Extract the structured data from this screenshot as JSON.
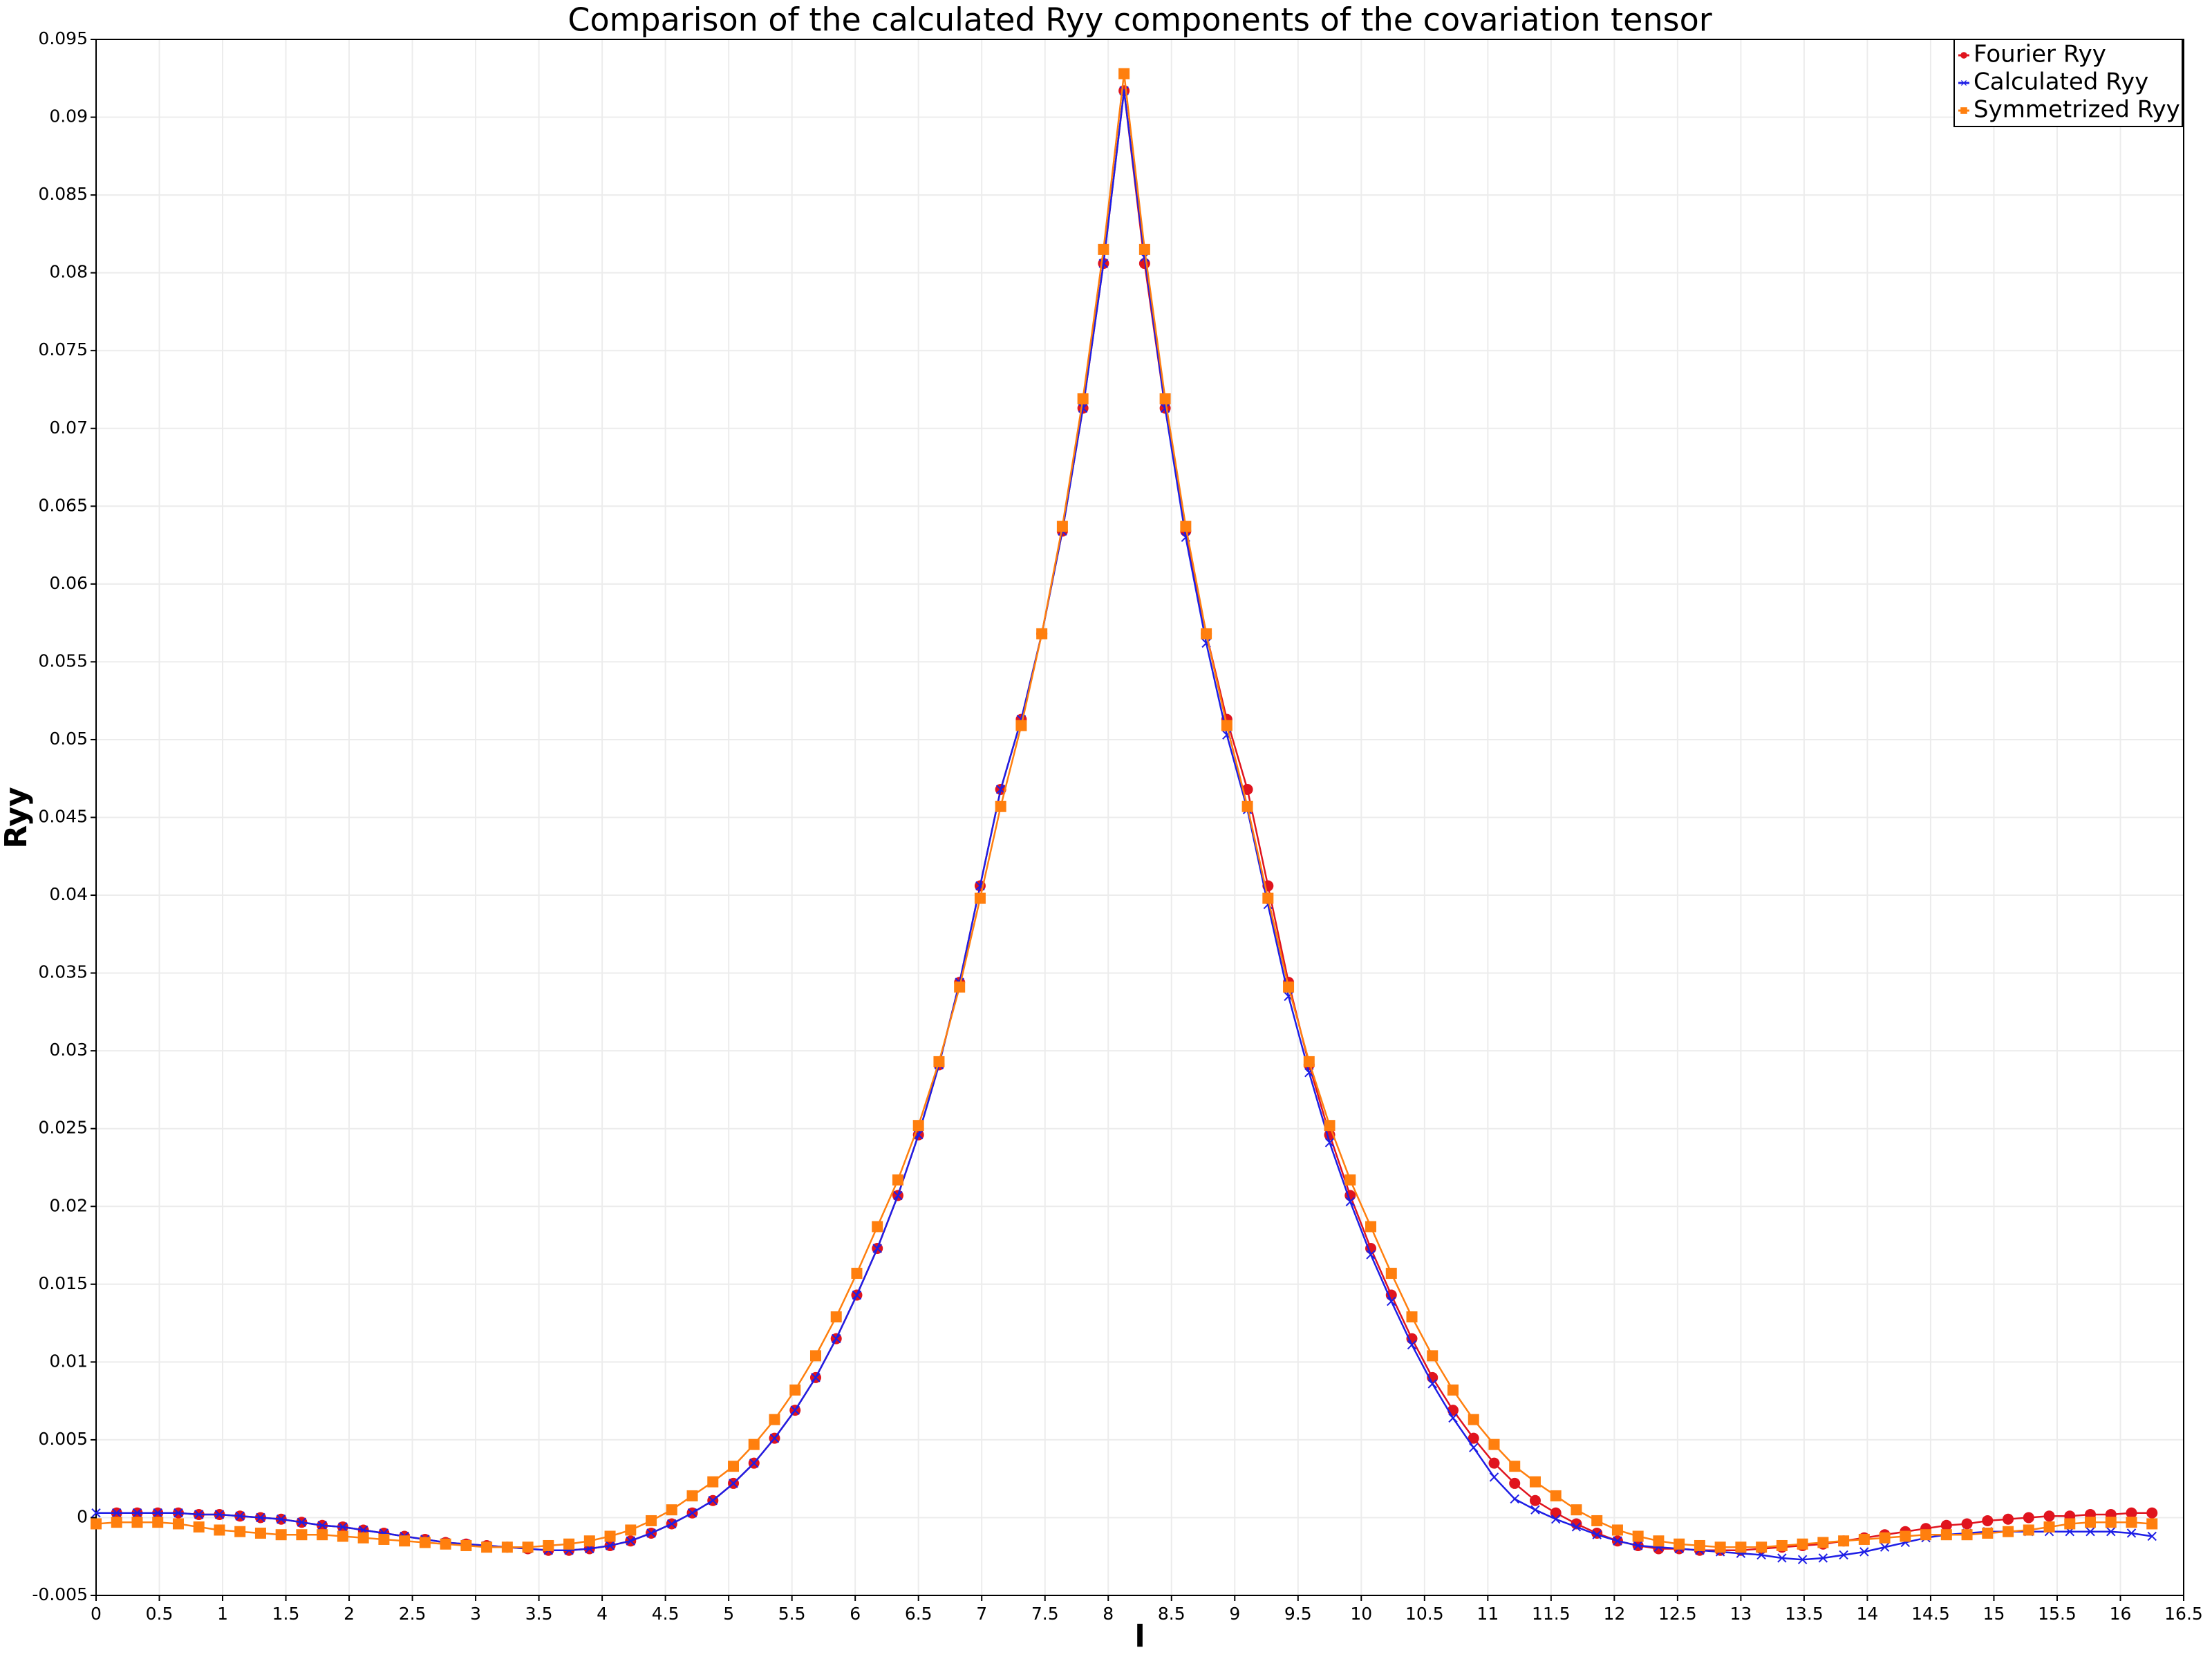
{
  "chart_data": {
    "type": "line",
    "title": "Comparison of the calculated Ryy components of the covariation tensor",
    "x_label": "l",
    "y_label": "Ryy",
    "xlim": [
      0,
      16.5
    ],
    "ylim": [
      -0.005,
      0.095
    ],
    "xticks": [
      0,
      0.5,
      1,
      1.5,
      2,
      2.5,
      3,
      3.5,
      4,
      4.5,
      5,
      5.5,
      6,
      6.5,
      7,
      7.5,
      8,
      8.5,
      9,
      9.5,
      10,
      10.5,
      11,
      11.5,
      12,
      12.5,
      13,
      13.5,
      14,
      14.5,
      15,
      15.5,
      16,
      16.5
    ],
    "yticks": [
      -0.005,
      0,
      0.005,
      0.01,
      0.015,
      0.02,
      0.025,
      0.03,
      0.035,
      0.04,
      0.045,
      0.05,
      0.055,
      0.06,
      0.065,
      0.07,
      0.075,
      0.08,
      0.085,
      0.09,
      0.095
    ],
    "grid": true,
    "legend": "upper right",
    "x": [
      0,
      0.1625,
      0.325,
      0.4875,
      0.65,
      0.8125,
      0.975,
      1.1375,
      1.3,
      1.4625,
      1.625,
      1.7875,
      1.95,
      2.1125,
      2.275,
      2.4375,
      2.6,
      2.7625,
      2.925,
      3.0875,
      3.25,
      3.4125,
      3.575,
      3.7375,
      3.9,
      4.0625,
      4.225,
      4.3875,
      4.55,
      4.7125,
      4.875,
      5.0375,
      5.2,
      5.3625,
      5.525,
      5.6875,
      5.85,
      6.0125,
      6.175,
      6.3375,
      6.5,
      6.6625,
      6.825,
      6.9875,
      7.15,
      7.3125,
      7.475,
      7.6375,
      7.8,
      7.9625,
      8.125,
      8.2875,
      8.45,
      8.6125,
      8.775,
      8.9375,
      9.1,
      9.2625,
      9.425,
      9.5875,
      9.75,
      9.9125,
      10.075,
      10.2375,
      10.4,
      10.5625,
      10.725,
      10.8875,
      11.05,
      11.2125,
      11.375,
      11.5375,
      11.7,
      11.8625,
      12.025,
      12.1875,
      12.35,
      12.5125,
      12.675,
      12.8375,
      13,
      13.1625,
      13.325,
      13.4875,
      13.65,
      13.8125,
      13.975,
      14.1375,
      14.3,
      14.4625,
      14.625,
      14.7875,
      14.95,
      15.1125,
      15.275,
      15.4375,
      15.6,
      15.7625,
      15.925,
      16.0875,
      16.25
    ],
    "series": [
      {
        "name": "Fourier Ryy",
        "color": "#e0141e",
        "marker": "circle",
        "values": [
          null,
          0.0003,
          0.0003,
          0.0003,
          0.0003,
          0.0002,
          0.0002,
          0.0001,
          0.0,
          -0.0001,
          -0.0003,
          -0.0005,
          -0.0006,
          -0.0008,
          -0.001,
          -0.0012,
          -0.0014,
          -0.0016,
          -0.0017,
          -0.0018,
          -0.0019,
          -0.002,
          -0.0021,
          -0.0021,
          -0.002,
          -0.0018,
          -0.0015,
          -0.001,
          -0.0004,
          0.0003,
          0.0011,
          0.0022,
          0.0035,
          0.0051,
          0.0069,
          0.009,
          0.0115,
          0.0143,
          0.0173,
          0.0207,
          0.0246,
          0.0291,
          0.0344,
          0.0406,
          0.0468,
          0.0513,
          0.0568,
          0.0634,
          0.0713,
          0.0806,
          0.0917,
          0.0806,
          0.0713,
          0.0634,
          0.0568,
          0.0513,
          0.0468,
          0.0406,
          0.0344,
          0.0291,
          0.0246,
          0.0207,
          0.0173,
          0.0143,
          0.0115,
          0.009,
          0.0069,
          0.0051,
          0.0035,
          0.0022,
          0.0011,
          0.0003,
          -0.0004,
          -0.001,
          -0.0015,
          -0.0018,
          -0.002,
          -0.002,
          -0.0021,
          -0.0021,
          -0.0021,
          -0.002,
          -0.0019,
          -0.0018,
          -0.0017,
          -0.0015,
          -0.0013,
          -0.0011,
          -0.0009,
          -0.0007,
          -0.0005,
          -0.0004,
          -0.0002,
          -0.0001,
          0.0,
          0.0001,
          0.0001,
          0.0002,
          0.0002,
          0.0003,
          0.0003
        ]
      },
      {
        "name": "Calculated Ryy",
        "color": "#1e1ee6",
        "marker": "x",
        "values": [
          0.0003,
          0.0003,
          0.0003,
          0.0003,
          0.0003,
          0.0002,
          0.0002,
          0.0001,
          0.0,
          -0.0001,
          -0.0003,
          -0.0005,
          -0.0006,
          -0.0008,
          -0.001,
          -0.0012,
          -0.0014,
          -0.0016,
          -0.0017,
          -0.0018,
          -0.0019,
          -0.002,
          -0.0021,
          -0.0021,
          -0.002,
          -0.0018,
          -0.0015,
          -0.001,
          -0.0004,
          0.0003,
          0.0011,
          0.0022,
          0.0035,
          0.0051,
          0.0069,
          0.009,
          0.0115,
          0.0143,
          0.0173,
          0.0207,
          0.0246,
          0.0291,
          0.0344,
          0.0406,
          0.0468,
          0.0513,
          0.0568,
          0.0634,
          0.0713,
          0.0806,
          0.0917,
          0.081,
          0.0713,
          0.063,
          0.0562,
          0.0503,
          0.0455,
          0.0394,
          0.0335,
          0.0286,
          0.0241,
          0.0203,
          0.0169,
          0.0139,
          0.0111,
          0.0086,
          0.0064,
          0.0045,
          0.0026,
          0.0012,
          0.0005,
          -0.0001,
          -0.0006,
          -0.0011,
          -0.0015,
          -0.0018,
          -0.0019,
          -0.002,
          -0.0021,
          -0.0022,
          -0.0023,
          -0.0024,
          -0.0026,
          -0.0027,
          -0.0026,
          -0.0024,
          -0.0022,
          -0.0019,
          -0.0016,
          -0.0013,
          -0.0011,
          -0.001,
          -0.0009,
          -0.0009,
          -0.0009,
          -0.0009,
          -0.0009,
          -0.0009,
          -0.0009,
          -0.001,
          -0.0012
        ]
      },
      {
        "name": "Symmetrized Ryy",
        "color": "#ff7f0e",
        "marker": "square",
        "values": [
          -0.0004,
          -0.0003,
          -0.0003,
          -0.0003,
          -0.0004,
          -0.0006,
          -0.0008,
          -0.0009,
          -0.001,
          -0.0011,
          -0.0011,
          -0.0011,
          -0.0012,
          -0.0013,
          -0.0014,
          -0.0015,
          -0.0016,
          -0.0017,
          -0.0018,
          -0.0019,
          -0.0019,
          -0.0019,
          -0.0018,
          -0.0017,
          -0.0015,
          -0.0012,
          -0.0008,
          -0.0002,
          0.0005,
          0.0014,
          0.0023,
          0.0033,
          0.0047,
          0.0063,
          0.0082,
          0.0104,
          0.0129,
          0.0157,
          0.0187,
          0.0217,
          0.0252,
          0.0293,
          0.0341,
          0.0398,
          0.0457,
          0.0509,
          0.0568,
          0.0637,
          0.0719,
          0.0815,
          0.0928,
          0.0815,
          0.0719,
          0.0637,
          0.0568,
          0.0509,
          0.0457,
          0.0398,
          0.0341,
          0.0293,
          0.0252,
          0.0217,
          0.0187,
          0.0157,
          0.0129,
          0.0104,
          0.0082,
          0.0063,
          0.0047,
          0.0033,
          0.0023,
          0.0014,
          0.0005,
          -0.0002,
          -0.0008,
          -0.0012,
          -0.0015,
          -0.0017,
          -0.0018,
          -0.0019,
          -0.0019,
          -0.0019,
          -0.0018,
          -0.0017,
          -0.0016,
          -0.0015,
          -0.0014,
          -0.0013,
          -0.0012,
          -0.0011,
          -0.0011,
          -0.0011,
          -0.001,
          -0.0009,
          -0.0008,
          -0.0006,
          -0.0004,
          -0.0003,
          -0.0003,
          -0.0003,
          -0.0004
        ]
      }
    ]
  }
}
